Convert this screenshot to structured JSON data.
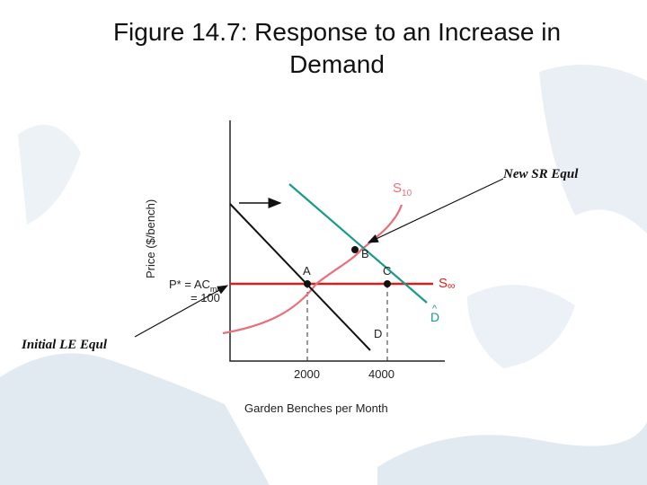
{
  "title_line1": "Figure 14.7: Response to an Increase in",
  "title_line2": "Demand",
  "ylabel": "Price ($/bench)",
  "xlabel": "Garden Benches per Month",
  "x_ticks": [
    "2000",
    "4000"
  ],
  "price_label_line1": "P* = AC",
  "price_label_sub": "min",
  "price_label_line2": "= 100",
  "curves": {
    "s10": {
      "label": "S",
      "sub": "10",
      "color": "#e8707a"
    },
    "s_inf": {
      "label": "S",
      "sub": "∞",
      "color": "#d62020"
    },
    "demand_old": {
      "label": "D",
      "color": "#111111"
    },
    "demand_new": {
      "label": "D",
      "accent": "^",
      "color": "#1a9a8a"
    }
  },
  "points": {
    "a": "A",
    "b": "B",
    "c": "C"
  },
  "annotations": {
    "new_sr": "New SR Equl",
    "initial_le": "Initial LE Equl"
  },
  "colors": {
    "s10": "#e8707a",
    "s_inf": "#d62020",
    "demand_new": "#1a9a8a",
    "axis": "#222222"
  }
}
